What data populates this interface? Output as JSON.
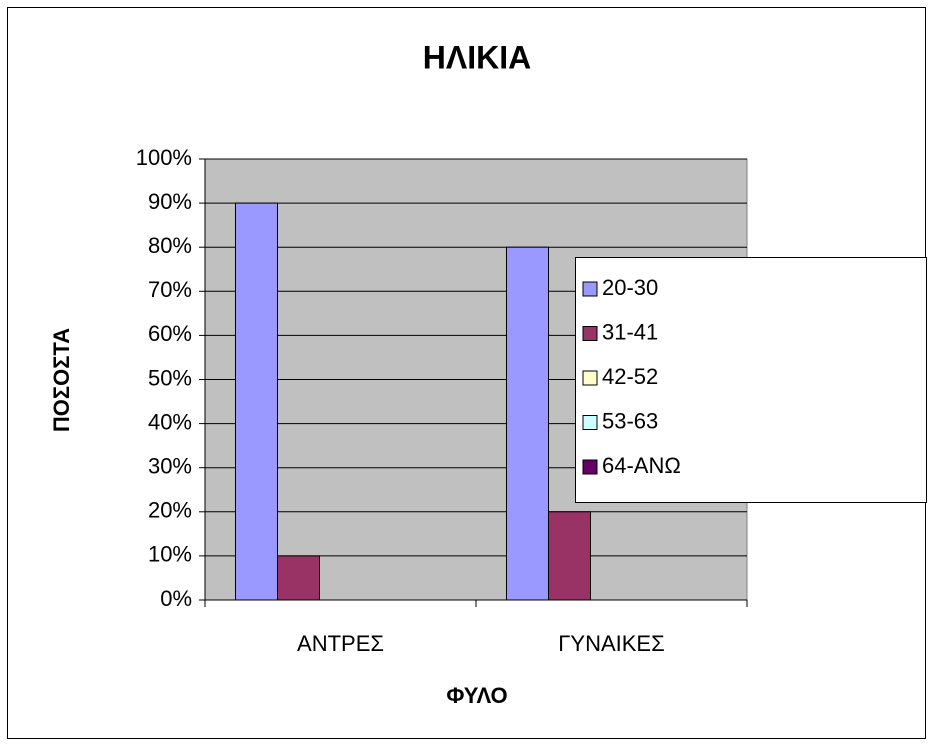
{
  "chart_data": {
    "type": "bar",
    "title": "ΗΛΙΚΙΑ",
    "x_label": "ΦΥΛΟ",
    "y_label": "ΠΟΣΟΣΤΑ",
    "categories": [
      "ΑΝΤΡΕΣ",
      "ΓΥΝΑΙΚΕΣ"
    ],
    "series": [
      {
        "name": "20-30",
        "color": "#9999ff",
        "values": [
          90,
          80
        ]
      },
      {
        "name": "31-41",
        "color": "#993366",
        "values": [
          10,
          20
        ]
      },
      {
        "name": "42-52",
        "color": "#ffffcc",
        "values": [
          0,
          0
        ]
      },
      {
        "name": "53-63",
        "color": "#ccffff",
        "values": [
          0,
          0
        ]
      },
      {
        "name": "64-ΑΝΩ",
        "color": "#660066",
        "values": [
          0,
          0
        ]
      }
    ],
    "ylim": [
      0,
      100
    ],
    "yticks": [
      {
        "value": 0,
        "label": "0%"
      },
      {
        "value": 10,
        "label": "10%"
      },
      {
        "value": 20,
        "label": "20%"
      },
      {
        "value": 30,
        "label": "30%"
      },
      {
        "value": 40,
        "label": "40%"
      },
      {
        "value": 50,
        "label": "50%"
      },
      {
        "value": 60,
        "label": "60%"
      },
      {
        "value": 70,
        "label": "70%"
      },
      {
        "value": 80,
        "label": "80%"
      },
      {
        "value": 90,
        "label": "90%"
      },
      {
        "value": 100,
        "label": "100%"
      }
    ],
    "grid": true,
    "plot_background": "#c0c0c0",
    "legend": "right"
  }
}
